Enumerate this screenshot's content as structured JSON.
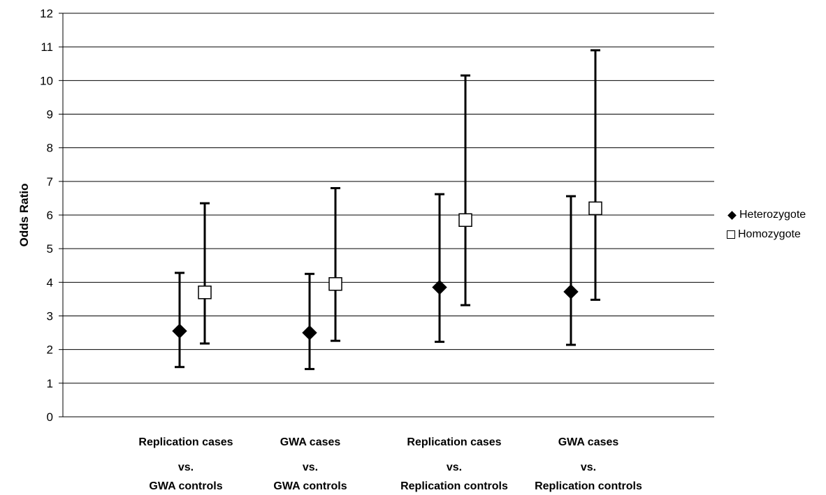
{
  "chart_data": {
    "type": "scatter",
    "ylabel": "Odds Ratio",
    "ylim": [
      0,
      12
    ],
    "yticks": [
      "0",
      "1",
      "2",
      "3",
      "4",
      "5",
      "6",
      "7",
      "8",
      "9",
      "10",
      "11",
      "12"
    ],
    "grid": true,
    "legend_position": "right",
    "categories": [
      [
        "Replication cases",
        "vs.",
        "GWA controls"
      ],
      [
        "GWA cases",
        "vs.",
        "GWA controls"
      ],
      [
        "Replication cases",
        "vs.",
        "Replication controls"
      ],
      [
        "GWA cases",
        "vs.",
        "Replication controls"
      ]
    ],
    "series": [
      {
        "name": "Heterozygote",
        "marker": "diamond",
        "color": "#000000",
        "values": [
          2.55,
          2.5,
          3.85,
          3.72
        ],
        "lower": [
          1.48,
          1.42,
          2.23,
          2.14
        ],
        "upper": [
          4.28,
          4.25,
          6.62,
          6.56
        ]
      },
      {
        "name": "Homozygote",
        "marker": "square",
        "color": "#ffffff",
        "values": [
          3.7,
          3.95,
          5.85,
          6.2
        ],
        "lower": [
          2.18,
          2.26,
          3.32,
          3.48
        ],
        "upper": [
          6.35,
          6.8,
          10.15,
          10.9
        ]
      }
    ]
  }
}
